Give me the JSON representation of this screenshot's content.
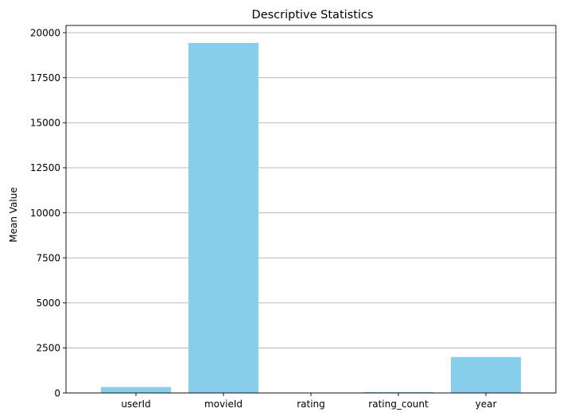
{
  "chart_data": {
    "type": "bar",
    "title": "Descriptive Statistics",
    "xlabel": "",
    "ylabel": "Mean Value",
    "categories": [
      "userId",
      "movieId",
      "rating",
      "rating_count",
      "year"
    ],
    "values": [
      330,
      19430,
      3.5,
      50,
      1995
    ],
    "ylim": [
      0,
      20400
    ],
    "yticks": [
      0,
      2500,
      5000,
      7500,
      10000,
      12500,
      15000,
      17500,
      20000
    ],
    "ytick_labels": [
      "0",
      "2500",
      "5000",
      "7500",
      "10000",
      "12500",
      "15000",
      "17500",
      "20000"
    ],
    "grid": "y",
    "bar_color": "#87ceeb",
    "grid_color": "#b0b0b0"
  }
}
